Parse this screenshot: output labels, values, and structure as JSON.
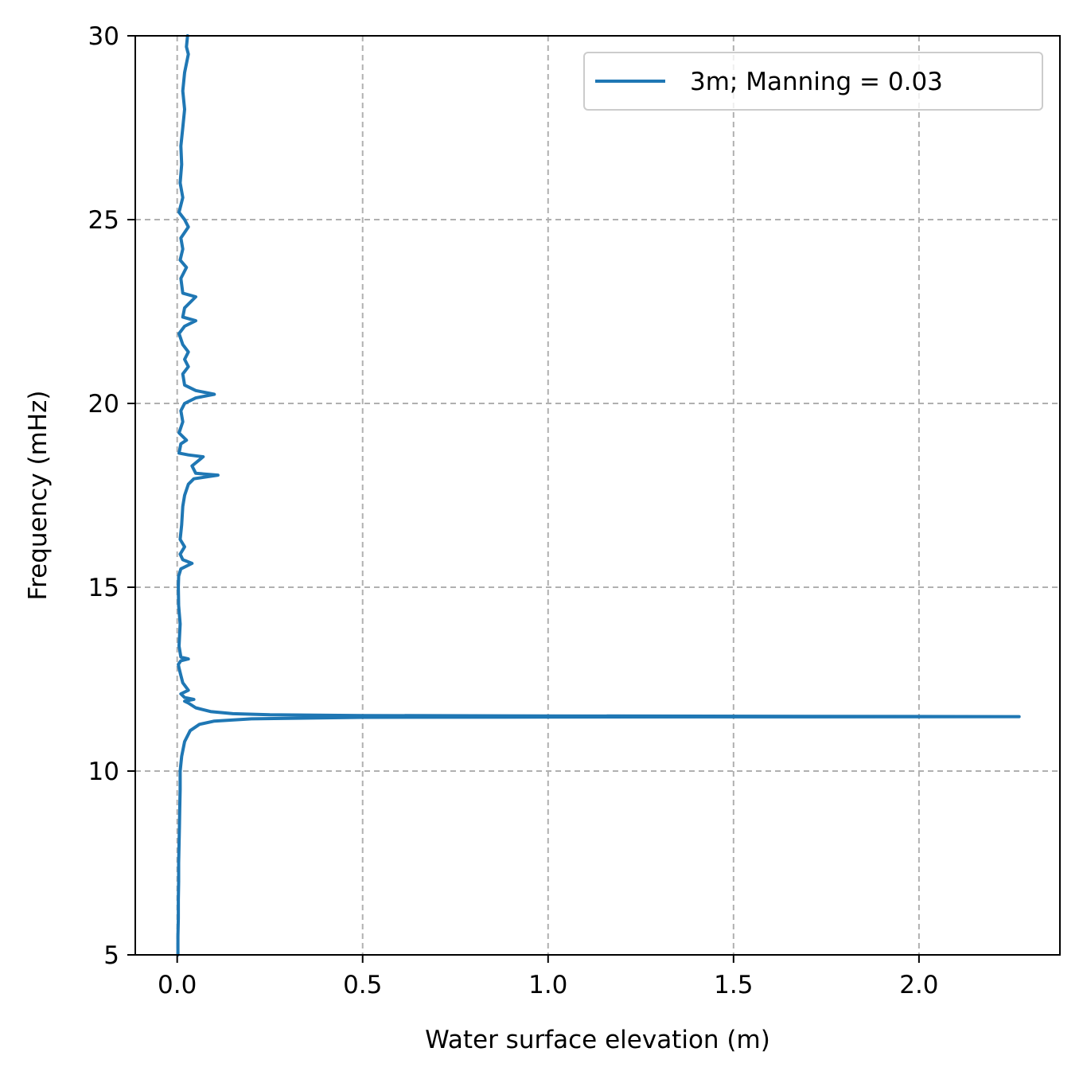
{
  "chart_data": {
    "type": "line",
    "orientation": "frequency-on-y",
    "xlabel": "Water surface elevation (m)",
    "ylabel": "Frequency (mHz)",
    "xlim": [
      -0.113,
      2.38
    ],
    "ylim": [
      5,
      30
    ],
    "x_ticks": [
      0.0,
      0.5,
      1.0,
      1.5,
      2.0
    ],
    "x_tick_labels": [
      "0.0",
      "0.5",
      "1.0",
      "1.5",
      "2.0"
    ],
    "y_ticks": [
      5,
      10,
      15,
      20,
      25,
      30
    ],
    "y_tick_labels": [
      "5",
      "10",
      "15",
      "20",
      "25",
      "30"
    ],
    "grid": true,
    "grid_style": "dashed",
    "legend_position": "top-right",
    "colors": {
      "series": "#1f77b4",
      "grid": "#b0b0b0",
      "axes": "#000000"
    },
    "series": [
      {
        "name": "3m; Manning = 0.03",
        "points": [
          [
            0.002,
            5.0
          ],
          [
            0.002,
            5.5
          ],
          [
            0.003,
            6.0
          ],
          [
            0.003,
            6.5
          ],
          [
            0.004,
            7.0
          ],
          [
            0.004,
            7.5
          ],
          [
            0.005,
            8.0
          ],
          [
            0.006,
            8.5
          ],
          [
            0.007,
            9.0
          ],
          [
            0.008,
            9.5
          ],
          [
            0.008,
            10.0
          ],
          [
            0.012,
            10.4
          ],
          [
            0.02,
            10.8
          ],
          [
            0.035,
            11.1
          ],
          [
            0.06,
            11.27
          ],
          [
            0.1,
            11.36
          ],
          [
            0.2,
            11.42
          ],
          [
            0.5,
            11.46
          ],
          [
            1.0,
            11.47
          ],
          [
            2.27,
            11.48
          ],
          [
            1.0,
            11.5
          ],
          [
            0.5,
            11.51
          ],
          [
            0.25,
            11.53
          ],
          [
            0.15,
            11.56
          ],
          [
            0.09,
            11.62
          ],
          [
            0.05,
            11.72
          ],
          [
            0.03,
            11.85
          ],
          [
            0.02,
            11.9
          ],
          [
            0.045,
            11.95
          ],
          [
            0.02,
            12.0
          ],
          [
            0.01,
            12.1
          ],
          [
            0.03,
            12.2
          ],
          [
            0.015,
            12.4
          ],
          [
            0.01,
            12.6
          ],
          [
            0.005,
            12.8
          ],
          [
            0.003,
            12.9
          ],
          [
            0.01,
            13.0
          ],
          [
            0.03,
            13.05
          ],
          [
            0.01,
            13.1
          ],
          [
            0.005,
            13.4
          ],
          [
            0.008,
            14.0
          ],
          [
            0.004,
            14.5
          ],
          [
            0.003,
            15.0
          ],
          [
            0.004,
            15.3
          ],
          [
            0.01,
            15.5
          ],
          [
            0.04,
            15.65
          ],
          [
            0.015,
            15.75
          ],
          [
            0.008,
            15.9
          ],
          [
            0.02,
            16.1
          ],
          [
            0.008,
            16.3
          ],
          [
            0.012,
            16.7
          ],
          [
            0.015,
            17.2
          ],
          [
            0.02,
            17.5
          ],
          [
            0.03,
            17.8
          ],
          [
            0.045,
            17.95
          ],
          [
            0.11,
            18.05
          ],
          [
            0.05,
            18.1
          ],
          [
            0.04,
            18.3
          ],
          [
            0.07,
            18.55
          ],
          [
            0.03,
            18.6
          ],
          [
            0.005,
            18.65
          ],
          [
            0.01,
            18.9
          ],
          [
            0.025,
            19.0
          ],
          [
            0.005,
            19.2
          ],
          [
            0.015,
            19.5
          ],
          [
            0.01,
            19.8
          ],
          [
            0.02,
            20.0
          ],
          [
            0.05,
            20.15
          ],
          [
            0.1,
            20.25
          ],
          [
            0.05,
            20.35
          ],
          [
            0.02,
            20.5
          ],
          [
            0.015,
            20.8
          ],
          [
            0.03,
            21.0
          ],
          [
            0.02,
            21.2
          ],
          [
            0.03,
            21.4
          ],
          [
            0.015,
            21.6
          ],
          [
            0.005,
            21.9
          ],
          [
            0.02,
            22.1
          ],
          [
            0.05,
            22.25
          ],
          [
            0.015,
            22.35
          ],
          [
            0.02,
            22.6
          ],
          [
            0.05,
            22.9
          ],
          [
            0.015,
            23.0
          ],
          [
            0.01,
            23.4
          ],
          [
            0.025,
            23.7
          ],
          [
            0.008,
            23.9
          ],
          [
            0.015,
            24.2
          ],
          [
            0.01,
            24.5
          ],
          [
            0.03,
            24.8
          ],
          [
            0.02,
            25.0
          ],
          [
            0.005,
            25.2
          ],
          [
            0.015,
            25.6
          ],
          [
            0.008,
            26.0
          ],
          [
            0.012,
            26.5
          ],
          [
            0.01,
            27.0
          ],
          [
            0.015,
            27.5
          ],
          [
            0.02,
            28.0
          ],
          [
            0.015,
            28.5
          ],
          [
            0.02,
            29.0
          ],
          [
            0.03,
            29.5
          ],
          [
            0.025,
            29.7
          ],
          [
            0.028,
            30.0
          ]
        ]
      }
    ]
  }
}
